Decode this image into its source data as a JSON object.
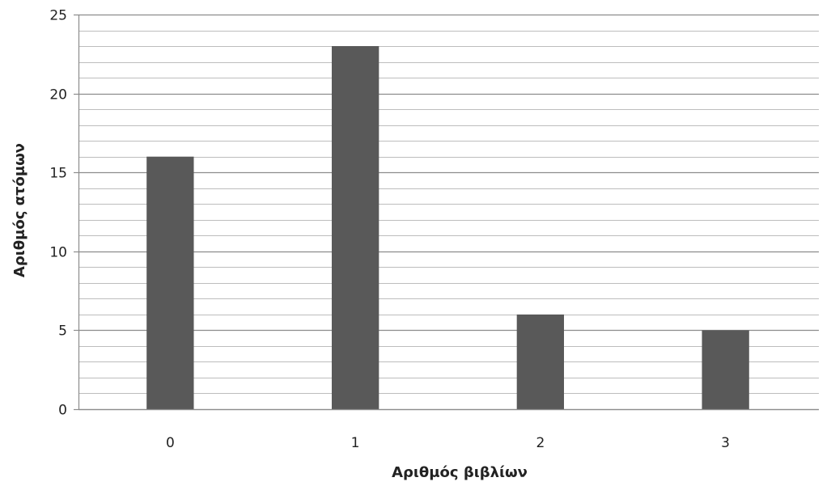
{
  "chart_data": {
    "type": "bar",
    "categories": [
      "0",
      "1",
      "2",
      "3"
    ],
    "values": [
      16,
      23,
      6,
      5
    ],
    "title": "",
    "xlabel": "Αριθμός βιβλίων",
    "ylabel": "Αριθμός ατόμων",
    "ylim": [
      0,
      25
    ],
    "yticks": [
      0,
      5,
      10,
      15,
      20,
      25
    ],
    "minor_grid_step": 1,
    "grid": true,
    "legend": "none",
    "colors": {
      "bar": "#595959",
      "major_grid": "#8c8c8c",
      "minor_grid": "#bdbdbd",
      "axis": "#8c8c8c"
    }
  }
}
